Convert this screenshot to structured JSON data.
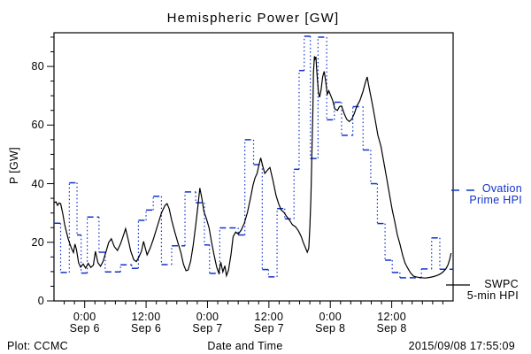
{
  "title": "Hemispheric Power [GW]",
  "colors": {
    "ovation": "#1133cc",
    "swpc": "#000000",
    "background": "#ffffff",
    "axis": "#000000"
  },
  "footer": {
    "left": "Plot: CCMC",
    "center": "Date and Time",
    "right": "2015/09/08 17:55:09"
  },
  "legend": {
    "ovation_line1": "Ovation",
    "ovation_line2": "Prime HPI",
    "swpc_line1": "SWPC",
    "swpc_line2": "5-min HPI"
  },
  "y_axis": {
    "label": "P [GW]",
    "major_ticks": [
      0,
      20,
      40,
      60,
      80
    ],
    "minor_step": 5,
    "max": 91.5
  },
  "x_axis": {
    "minor_step_hours": 2,
    "range_hours": [
      -6,
      72
    ],
    "ticks": [
      {
        "hour": 0,
        "time": "0:00",
        "date": "Sep 6"
      },
      {
        "hour": 12,
        "time": "12:00",
        "date": "Sep 6"
      },
      {
        "hour": 24,
        "time": "0:00",
        "date": "Sep 7"
      },
      {
        "hour": 36,
        "time": "12:00",
        "date": "Sep 7"
      },
      {
        "hour": 48,
        "time": "0:00",
        "date": "Sep 8"
      },
      {
        "hour": 60,
        "time": "12:00",
        "date": "Sep 8"
      }
    ]
  },
  "chart_data": {
    "type": "line",
    "title": "Hemispheric Power [GW]",
    "xlabel": "Date and Time",
    "ylabel": "P [GW]",
    "x_unit": "hours since 2015-09-06 00:00 UT",
    "xlim": [
      -6,
      72
    ],
    "ylim": [
      0,
      91.5
    ],
    "grid": false,
    "legend_position": "right-outside",
    "series": [
      {
        "name": "Ovation Prime HPI",
        "color": "#1133cc",
        "style": "step-dashed",
        "note": "value in GW holds from its hour until the next entry; last value holds to hour 72",
        "steps": [
          [
            -6,
            26.5
          ],
          [
            -4.7,
            9.7
          ],
          [
            -3,
            40.3
          ],
          [
            -1.5,
            22.5
          ],
          [
            -0.7,
            9.5
          ],
          [
            0.5,
            28.6
          ],
          [
            2.8,
            16.6
          ],
          [
            4,
            9.9
          ],
          [
            7,
            12.3
          ],
          [
            9.2,
            11.1
          ],
          [
            10.5,
            27.5
          ],
          [
            12,
            31
          ],
          [
            13.4,
            35.7
          ],
          [
            15,
            12.4
          ],
          [
            17,
            18.8
          ],
          [
            19.6,
            37.2
          ],
          [
            21.7,
            33.5
          ],
          [
            23.4,
            19.1
          ],
          [
            24.4,
            9.4
          ],
          [
            26.4,
            24.9
          ],
          [
            30,
            22.5
          ],
          [
            31.3,
            55
          ],
          [
            33,
            46.5
          ],
          [
            34.7,
            10.7
          ],
          [
            35.9,
            8.2
          ],
          [
            37.6,
            31.5
          ],
          [
            39.1,
            28
          ],
          [
            40.9,
            44.9
          ],
          [
            41.9,
            78.6
          ],
          [
            42.9,
            90.3
          ],
          [
            44.1,
            48.6
          ],
          [
            45.6,
            90
          ],
          [
            47.3,
            61.8
          ],
          [
            48.8,
            67.8
          ],
          [
            50.2,
            56.5
          ],
          [
            52.4,
            66.3
          ],
          [
            54.4,
            51.5
          ],
          [
            55.9,
            40
          ],
          [
            57.2,
            26.4
          ],
          [
            58.7,
            13.9
          ],
          [
            60.1,
            9.7
          ],
          [
            61.6,
            7.9
          ],
          [
            65.8,
            10.9
          ],
          [
            67.8,
            21.5
          ],
          [
            69.4,
            10.8
          ]
        ],
        "end_hour": 72
      },
      {
        "name": "SWPC 5-min HPI",
        "color": "#000000",
        "style": "line",
        "points": [
          [
            -6,
            33.5
          ],
          [
            -5.6,
            33.8
          ],
          [
            -5.3,
            32.6
          ],
          [
            -5,
            33.4
          ],
          [
            -4.7,
            33.2
          ],
          [
            -4.3,
            30
          ],
          [
            -3.9,
            26
          ],
          [
            -3.5,
            23
          ],
          [
            -3.2,
            21
          ],
          [
            -2.9,
            19.5
          ],
          [
            -2.6,
            18
          ],
          [
            -2.2,
            16.5
          ],
          [
            -1.9,
            19.4
          ],
          [
            -1.6,
            17.5
          ],
          [
            -1.2,
            13
          ],
          [
            -0.8,
            11.5
          ],
          [
            -0.3,
            12.6
          ],
          [
            0.2,
            11.2
          ],
          [
            0.7,
            12.8
          ],
          [
            1.2,
            11.4
          ],
          [
            1.7,
            12.2
          ],
          [
            2.1,
            16.9
          ],
          [
            2.6,
            13
          ],
          [
            3.1,
            11.8
          ],
          [
            3.6,
            13.5
          ],
          [
            4.2,
            17
          ],
          [
            4.7,
            20
          ],
          [
            5.2,
            21.2
          ],
          [
            5.8,
            18.5
          ],
          [
            6.4,
            17.2
          ],
          [
            7,
            19.5
          ],
          [
            7.5,
            22
          ],
          [
            8,
            24.6
          ],
          [
            8.5,
            21
          ],
          [
            9,
            17
          ],
          [
            9.6,
            14
          ],
          [
            10.1,
            13.4
          ],
          [
            10.6,
            15
          ],
          [
            11.1,
            17
          ],
          [
            11.5,
            20.3
          ],
          [
            12.2,
            15.7
          ],
          [
            12.8,
            18
          ],
          [
            13.4,
            21
          ],
          [
            14.2,
            25.5
          ],
          [
            15,
            30
          ],
          [
            15.7,
            32.6
          ],
          [
            16.1,
            33.2
          ],
          [
            16.5,
            31.5
          ],
          [
            17,
            27.5
          ],
          [
            17.6,
            23.5
          ],
          [
            18.2,
            20
          ],
          [
            18.8,
            16.5
          ],
          [
            19.3,
            12.5
          ],
          [
            19.8,
            10.3
          ],
          [
            20.2,
            10.5
          ],
          [
            20.7,
            13.5
          ],
          [
            21.2,
            19
          ],
          [
            21.7,
            26
          ],
          [
            22.1,
            32
          ],
          [
            22.5,
            38.5
          ],
          [
            22.9,
            35
          ],
          [
            23.3,
            30.5
          ],
          [
            23.8,
            28
          ],
          [
            24.3,
            25
          ],
          [
            24.8,
            20
          ],
          [
            25.3,
            15.5
          ],
          [
            25.8,
            11.5
          ],
          [
            26.2,
            9.5
          ],
          [
            26.6,
            13.2
          ],
          [
            27,
            9.9
          ],
          [
            27.4,
            12
          ],
          [
            27.7,
            8.6
          ],
          [
            28.1,
            10.5
          ],
          [
            28.6,
            16
          ],
          [
            29,
            21.9
          ],
          [
            29.5,
            23.5
          ],
          [
            30,
            22.8
          ],
          [
            30.6,
            24.2
          ],
          [
            31.2,
            26.5
          ],
          [
            31.8,
            30.2
          ],
          [
            32.4,
            35
          ],
          [
            32.9,
            39.5
          ],
          [
            33.3,
            42
          ],
          [
            33.7,
            43.5
          ],
          [
            34,
            46
          ],
          [
            34.4,
            48.8
          ],
          [
            34.8,
            46
          ],
          [
            35.2,
            43.5
          ],
          [
            35.8,
            44.8
          ],
          [
            36.2,
            45.5
          ],
          [
            36.8,
            41
          ],
          [
            37.4,
            36
          ],
          [
            37.9,
            33.2
          ],
          [
            38.4,
            31
          ],
          [
            38.9,
            30.3
          ],
          [
            39.4,
            29
          ],
          [
            40,
            27.6
          ],
          [
            40.6,
            26
          ],
          [
            41.2,
            25.3
          ],
          [
            41.8,
            23.8
          ],
          [
            42.3,
            22
          ],
          [
            42.7,
            20
          ],
          [
            43.1,
            18.3
          ],
          [
            43.5,
            16.6
          ],
          [
            43.8,
            18
          ],
          [
            44,
            25
          ],
          [
            44.2,
            35
          ],
          [
            44.4,
            50
          ],
          [
            44.6,
            66
          ],
          [
            44.7,
            78
          ],
          [
            44.9,
            83.5
          ],
          [
            45,
            82.5
          ],
          [
            45.2,
            83.3
          ],
          [
            45.3,
            80
          ],
          [
            45.5,
            75
          ],
          [
            45.7,
            71
          ],
          [
            45.9,
            69.5
          ],
          [
            46.2,
            72
          ],
          [
            46.5,
            76.5
          ],
          [
            46.8,
            78.3
          ],
          [
            47.1,
            75
          ],
          [
            47.4,
            70.5
          ],
          [
            47.7,
            71.7
          ],
          [
            48.1,
            70
          ],
          [
            48.5,
            68.2
          ],
          [
            48.9,
            65.5
          ],
          [
            49.4,
            65
          ],
          [
            49.8,
            66.3
          ],
          [
            50.2,
            66.5
          ],
          [
            50.7,
            64
          ],
          [
            51.2,
            62
          ],
          [
            51.7,
            61.2
          ],
          [
            52.2,
            62
          ],
          [
            52.7,
            64
          ],
          [
            53.2,
            66.5
          ],
          [
            53.8,
            68.5
          ],
          [
            54.4,
            71.5
          ],
          [
            54.9,
            74.8
          ],
          [
            55.2,
            76.4
          ],
          [
            55.5,
            73.5
          ],
          [
            55.9,
            70
          ],
          [
            56.3,
            66.4
          ],
          [
            56.8,
            61.5
          ],
          [
            57.3,
            56.5
          ],
          [
            57.9,
            52.7
          ],
          [
            58.5,
            47
          ],
          [
            59.1,
            41
          ],
          [
            59.6,
            36
          ],
          [
            60.1,
            31
          ],
          [
            60.6,
            27
          ],
          [
            61.1,
            22.5
          ],
          [
            61.6,
            19.4
          ],
          [
            62.1,
            15.8
          ],
          [
            62.6,
            13
          ],
          [
            63.1,
            11.3
          ],
          [
            63.7,
            9.5
          ],
          [
            64.3,
            8.4
          ],
          [
            65,
            8.1
          ],
          [
            65.8,
            7.9
          ],
          [
            66.6,
            7.8
          ],
          [
            67.4,
            8
          ],
          [
            68.2,
            8.3
          ],
          [
            69,
            8.8
          ],
          [
            69.6,
            9.3
          ],
          [
            70.1,
            10
          ],
          [
            70.6,
            11
          ],
          [
            71,
            12.3
          ],
          [
            71.3,
            14
          ],
          [
            71.6,
            16.3
          ]
        ]
      }
    ]
  }
}
